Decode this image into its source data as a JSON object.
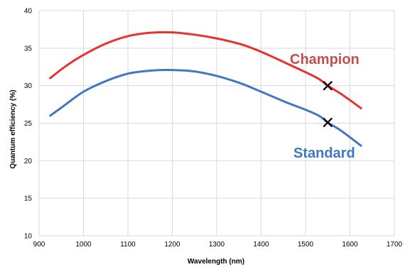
{
  "chart_data": {
    "type": "line",
    "title": "",
    "xlabel": "Wavelength (nm)",
    "ylabel": "Quantum efficiency (%)",
    "xlim": [
      900,
      1700
    ],
    "ylim": [
      10,
      40
    ],
    "xticks": [
      900,
      1000,
      1100,
      1200,
      1300,
      1400,
      1500,
      1600,
      1700
    ],
    "yticks": [
      10,
      15,
      20,
      25,
      30,
      35,
      40
    ],
    "grid": true,
    "series": [
      {
        "name": "Champion",
        "color": "#e8322f",
        "points": [
          [
            925,
            31.0
          ],
          [
            960,
            32.6
          ],
          [
            1000,
            34.1
          ],
          [
            1050,
            35.6
          ],
          [
            1100,
            36.6
          ],
          [
            1150,
            37.05
          ],
          [
            1200,
            37.1
          ],
          [
            1250,
            36.8
          ],
          [
            1300,
            36.3
          ],
          [
            1350,
            35.6
          ],
          [
            1380,
            35.0
          ],
          [
            1420,
            34.0
          ],
          [
            1460,
            32.9
          ],
          [
            1500,
            31.8
          ],
          [
            1530,
            30.9
          ],
          [
            1550,
            30.0
          ],
          [
            1580,
            28.9
          ],
          [
            1625,
            27.0
          ]
        ],
        "marker": {
          "x": 1550,
          "y": 30.0,
          "symbol": "x"
        }
      },
      {
        "name": "Standard",
        "color": "#3f78c0",
        "points": [
          [
            925,
            26.0
          ],
          [
            960,
            27.5
          ],
          [
            1000,
            29.2
          ],
          [
            1050,
            30.6
          ],
          [
            1100,
            31.6
          ],
          [
            1150,
            32.0
          ],
          [
            1190,
            32.1
          ],
          [
            1250,
            31.9
          ],
          [
            1300,
            31.3
          ],
          [
            1350,
            30.4
          ],
          [
            1380,
            29.7
          ],
          [
            1420,
            28.7
          ],
          [
            1460,
            27.7
          ],
          [
            1500,
            26.8
          ],
          [
            1530,
            26.0
          ],
          [
            1550,
            25.1
          ],
          [
            1580,
            24.0
          ],
          [
            1625,
            22.0
          ]
        ],
        "marker": {
          "x": 1550,
          "y": 25.1,
          "symbol": "x"
        }
      }
    ],
    "annotations": [
      {
        "text": "Champion",
        "color": "#c0504d"
      },
      {
        "text": "Standard",
        "color": "#3f78c0"
      }
    ]
  }
}
